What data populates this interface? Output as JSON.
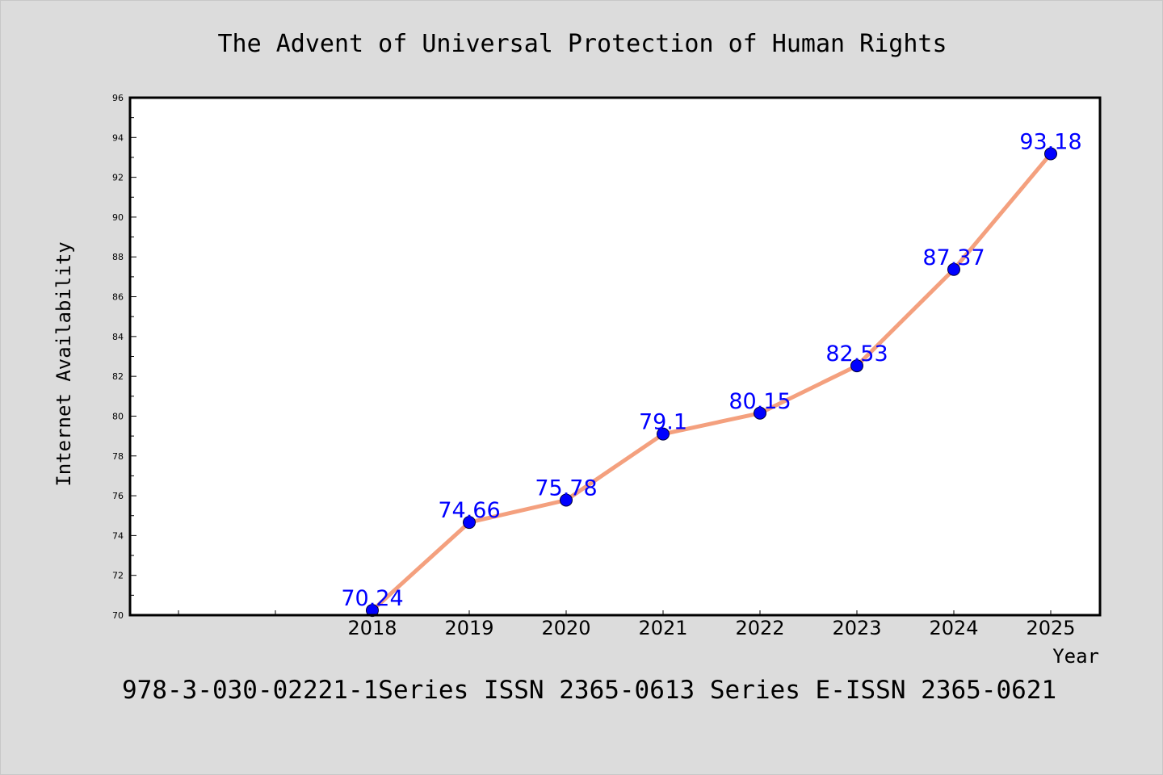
{
  "chart_data": {
    "type": "line",
    "title": "The Advent of Universal Protection of Human Rights",
    "xlabel": "Year",
    "ylabel": "Internet Availability",
    "x_ticks": [
      "",
      "",
      "2018",
      "2019",
      "2020",
      "2021",
      "2022",
      "2023",
      "2024",
      "2025"
    ],
    "series": [
      {
        "x": [
          "2018",
          "2019",
          "2020",
          "2021",
          "2022",
          "2023",
          "2024",
          "2025"
        ],
        "values": [
          70.24,
          74.66,
          75.78,
          79.1,
          80.15,
          82.53,
          87.37,
          93.18
        ],
        "labels": [
          "70.24",
          "74.66",
          "75.78",
          "79.1",
          "80.15",
          "82.53",
          "87.37",
          "93.18"
        ]
      }
    ],
    "ylim": [
      70,
      96
    ],
    "yticks": [
      "70",
      "72",
      "74",
      "76",
      "78",
      "80",
      "82",
      "84",
      "86",
      "88",
      "90",
      "92",
      "94",
      "96"
    ],
    "grid": false,
    "legend": "none",
    "colors": {
      "line": "#f4a07e",
      "marker": "#0000ff",
      "data_label": "#0000ff",
      "background": "#dcdcdc",
      "plot_background": "#ffffff"
    }
  },
  "footer": {
    "text": "978-3-030-02221-1Series ISSN 2365-0613 Series E-ISSN 2365-0621"
  }
}
